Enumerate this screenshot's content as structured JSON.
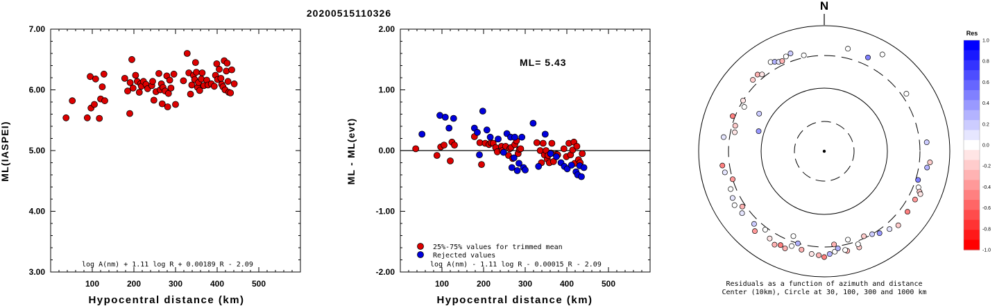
{
  "title": "20200515110326",
  "chart_data": [
    {
      "type": "scatter",
      "xlabel": "Hypocentral distance (km)",
      "ylabel": "ML(IASPEI)",
      "xlim": [
        0,
        600
      ],
      "ylim": [
        3.0,
        7.0
      ],
      "xticks": [
        "100",
        "200",
        "300",
        "400",
        "500"
      ],
      "yticks": [
        "3.00",
        "4.00",
        "5.00",
        "6.00",
        "7.00"
      ],
      "formula": "log A(nm) + 1.11 log R + 0.00189 R - 2.09",
      "series": [
        {
          "color": "#dd0000",
          "points": [
            [
              37,
              5.54
            ],
            [
              52,
              5.82
            ],
            [
              88,
              5.54
            ],
            [
              95,
              6.22
            ],
            [
              97,
              5.7
            ],
            [
              105,
              5.76
            ],
            [
              108,
              6.18
            ],
            [
              117,
              5.53
            ],
            [
              120,
              5.85
            ],
            [
              124,
              6.05
            ],
            [
              128,
              6.26
            ],
            [
              130,
              5.82
            ],
            [
              178,
              6.19
            ],
            [
              185,
              5.98
            ],
            [
              190,
              5.61
            ],
            [
              191,
              6.12
            ],
            [
              195,
              6.5
            ],
            [
              198,
              6.03
            ],
            [
              204,
              6.24
            ],
            [
              208,
              6.14
            ],
            [
              213,
              5.96
            ],
            [
              216,
              6.1
            ],
            [
              218,
              6.06
            ],
            [
              223,
              6.14
            ],
            [
              229,
              6.09
            ],
            [
              233,
              6.02
            ],
            [
              243,
              6.07
            ],
            [
              245,
              6.14
            ],
            [
              248,
              5.83
            ],
            [
              253,
              5.97
            ],
            [
              260,
              6.27
            ],
            [
              263,
              6.0
            ],
            [
              266,
              6.1
            ],
            [
              268,
              5.77
            ],
            [
              270,
              6.04
            ],
            [
              275,
              5.98
            ],
            [
              279,
              6.23
            ],
            [
              281,
              5.72
            ],
            [
              283,
              5.94
            ],
            [
              286,
              6.16
            ],
            [
              289,
              6.03
            ],
            [
              296,
              6.26
            ],
            [
              300,
              5.76
            ],
            [
              319,
              6.15
            ],
            [
              328,
              6.6
            ],
            [
              332,
              6.28
            ],
            [
              336,
              5.93
            ],
            [
              339,
              6.08
            ],
            [
              343,
              6.24
            ],
            [
              346,
              6.17
            ],
            [
              348,
              6.45
            ],
            [
              350,
              6.29
            ],
            [
              353,
              6.04
            ],
            [
              355,
              6.12
            ],
            [
              358,
              5.99
            ],
            [
              362,
              6.18
            ],
            [
              364,
              6.28
            ],
            [
              368,
              6.07
            ],
            [
              375,
              6.16
            ],
            [
              378,
              6.08
            ],
            [
              386,
              6.1
            ],
            [
              393,
              6.06
            ],
            [
              396,
              6.24
            ],
            [
              399,
              6.43
            ],
            [
              401,
              6.17
            ],
            [
              405,
              6.34
            ],
            [
              409,
              6.19
            ],
            [
              411,
              6.09
            ],
            [
              414,
              6.05
            ],
            [
              417,
              6.48
            ],
            [
              419,
              6.0
            ],
            [
              422,
              6.31
            ],
            [
              424,
              6.44
            ],
            [
              426,
              6.14
            ],
            [
              428,
              5.96
            ],
            [
              432,
              5.95
            ],
            [
              435,
              6.33
            ],
            [
              441,
              6.1
            ]
          ]
        }
      ]
    },
    {
      "type": "scatter",
      "xlabel": "Hypocentral distance (km)",
      "ylabel": "ML - ML(evt)",
      "xlim": [
        0,
        600
      ],
      "ylim": [
        -2.0,
        2.0
      ],
      "xticks": [
        "100",
        "200",
        "300",
        "400",
        "500"
      ],
      "yticks": [
        "-2.00",
        "-1.00",
        "0.00",
        "1.00",
        "2.00"
      ],
      "annotation": "ML= 5.43",
      "formula": "log A(nm) - 1.11 log R - 0.00015 R - 2.09",
      "legend": [
        "25%-75% values for trimmed mean",
        "Rejected values"
      ],
      "series": [
        {
          "name": "25%-75% values for trimmed mean",
          "color": "#dd0000",
          "points": [
            [
              37,
              0.03
            ],
            [
              88,
              -0.08
            ],
            [
              97,
              0.06
            ],
            [
              105,
              0.09
            ],
            [
              120,
              -0.17
            ],
            [
              124,
              0.14
            ],
            [
              130,
              0.09
            ],
            [
              178,
              0.23
            ],
            [
              191,
              0.13
            ],
            [
              195,
              -0.23
            ],
            [
              204,
              0.12
            ],
            [
              213,
              0.1
            ],
            [
              218,
              0.13
            ],
            [
              223,
              0.12
            ],
            [
              229,
              0.05
            ],
            [
              233,
              -0.02
            ],
            [
              243,
              0.07
            ],
            [
              245,
              0.0
            ],
            [
              253,
              0.07
            ],
            [
              260,
              -0.08
            ],
            [
              263,
              0.03
            ],
            [
              266,
              0.05
            ],
            [
              270,
              -0.13
            ],
            [
              275,
              0.1
            ],
            [
              279,
              0.16
            ],
            [
              283,
              -0.05
            ],
            [
              286,
              0.02
            ],
            [
              289,
              0.03
            ],
            [
              328,
              0.13
            ],
            [
              336,
              0.0
            ],
            [
              339,
              -0.2
            ],
            [
              343,
              0.12
            ],
            [
              346,
              -0.07
            ],
            [
              350,
              0.0
            ],
            [
              353,
              -0.14
            ],
            [
              355,
              -0.08
            ],
            [
              358,
              -0.2
            ],
            [
              362,
              -0.04
            ],
            [
              364,
              0.12
            ],
            [
              368,
              -0.18
            ],
            [
              375,
              -0.06
            ],
            [
              378,
              -0.07
            ],
            [
              393,
              0.03
            ],
            [
              399,
              -0.1
            ],
            [
              405,
              0.12
            ],
            [
              409,
              -0.07
            ],
            [
              414,
              0.01
            ],
            [
              417,
              0.14
            ],
            [
              419,
              -0.21
            ],
            [
              424,
              0.07
            ],
            [
              428,
              -0.15
            ],
            [
              432,
              -0.2
            ],
            [
              437,
              -0.05
            ]
          ]
        },
        {
          "name": "Rejected values",
          "color": "#0000dd",
          "points": [
            [
              52,
              0.27
            ],
            [
              95,
              0.58
            ],
            [
              108,
              0.55
            ],
            [
              117,
              0.37
            ],
            [
              128,
              0.53
            ],
            [
              178,
              0.37
            ],
            [
              185,
              0.3
            ],
            [
              190,
              -0.07
            ],
            [
              198,
              0.65
            ],
            [
              208,
              0.34
            ],
            [
              216,
              0.22
            ],
            [
              235,
              0.19
            ],
            [
              248,
              -0.03
            ],
            [
              256,
              0.28
            ],
            [
              265,
              0.22
            ],
            [
              268,
              -0.28
            ],
            [
              273,
              -0.12
            ],
            [
              275,
              0.22
            ],
            [
              281,
              -0.33
            ],
            [
              285,
              -0.21
            ],
            [
              292,
              0.22
            ],
            [
              296,
              -0.28
            ],
            [
              300,
              -0.32
            ],
            [
              319,
              0.45
            ],
            [
              332,
              -0.26
            ],
            [
              348,
              0.27
            ],
            [
              361,
              -0.05
            ],
            [
              375,
              -0.1
            ],
            [
              386,
              -0.2
            ],
            [
              394,
              -0.26
            ],
            [
              401,
              -0.3
            ],
            [
              411,
              -0.24
            ],
            [
              422,
              -0.35
            ],
            [
              426,
              -0.4
            ],
            [
              431,
              -0.25
            ],
            [
              435,
              -0.43
            ],
            [
              441,
              -0.28
            ]
          ]
        }
      ]
    },
    {
      "type": "scatter",
      "subtype": "polar",
      "north_label": "N",
      "caption": [
        "Residuals as a function of azimuth and distance",
        "Center (10km), Circle at 30, 100, 300 and 1000 km"
      ],
      "colorbar_title": "Res",
      "colorbar_ticks": [
        "1.0",
        "0.8",
        "0.6",
        "0.4",
        "0.2",
        "0.0",
        "-0.2",
        "-0.4",
        "-0.6",
        "-0.8",
        "-1.0"
      ],
      "color_scale": {
        "positive": "#0000ff",
        "zero": "#ffffff",
        "negative": "#ff0000"
      },
      "points": [
        {
          "az": 299,
          "dist": 260,
          "res": 0.0
        },
        {
          "az": 302,
          "dist": 300,
          "res": -0.1
        },
        {
          "az": 287,
          "dist": 120,
          "res": 0.4
        },
        {
          "az": 278,
          "dist": 380,
          "res": 0.1
        },
        {
          "az": 282,
          "dist": 260,
          "res": -0.1
        },
        {
          "az": 286,
          "dist": 270,
          "res": -0.2
        },
        {
          "az": 291,
          "dist": 330,
          "res": -0.5
        },
        {
          "az": 300,
          "dist": 150,
          "res": 0.2
        },
        {
          "az": 315,
          "dist": 370,
          "res": -0.2
        },
        {
          "az": 319,
          "dist": 380,
          "res": -0.3
        },
        {
          "az": 321,
          "dist": 340,
          "res": -0.1
        },
        {
          "az": 329,
          "dist": 420,
          "res": 0.0
        },
        {
          "az": 331,
          "dist": 390,
          "res": 0.3
        },
        {
          "az": 333,
          "dist": 360,
          "res": 0.1
        },
        {
          "az": 335,
          "dist": 350,
          "res": -0.3
        },
        {
          "az": 338,
          "dist": 390,
          "res": 0.0
        },
        {
          "az": 341,
          "dist": 410,
          "res": 0.2
        },
        {
          "az": 348,
          "dist": 330,
          "res": 0.0
        },
        {
          "az": 13,
          "dist": 440,
          "res": 0.0
        },
        {
          "az": 25,
          "dist": 410,
          "res": 0.5
        },
        {
          "az": 31,
          "dist": 600,
          "res": 0.0
        },
        {
          "az": 99,
          "dist": 420,
          "res": 0.3
        },
        {
          "az": 107,
          "dist": 330,
          "res": 0.5
        },
        {
          "az": 111,
          "dist": 370,
          "res": 0.0
        },
        {
          "az": 113,
          "dist": 410,
          "res": -0.2
        },
        {
          "az": 114,
          "dist": 440,
          "res": -0.1
        },
        {
          "az": 118,
          "dist": 400,
          "res": -0.4
        },
        {
          "az": 150,
          "dist": 300,
          "res": 0.2
        },
        {
          "az": 160,
          "dist": 390,
          "res": -0.2
        },
        {
          "az": 167,
          "dist": 390,
          "res": -0.3
        },
        {
          "az": 168,
          "dist": 370,
          "res": 0.0
        },
        {
          "az": 174,
          "dist": 370,
          "res": 0.0
        },
        {
          "az": 177,
          "dist": 400,
          "res": 0.3
        },
        {
          "az": 180,
          "dist": 450,
          "res": -0.5
        },
        {
          "az": 183,
          "dist": 420,
          "res": -0.3
        },
        {
          "az": 187,
          "dist": 410,
          "res": -0.1
        },
        {
          "az": 193,
          "dist": 370,
          "res": -0.3
        },
        {
          "az": 196,
          "dist": 300,
          "res": 0.3
        },
        {
          "az": 199,
          "dist": 360,
          "res": 0.0
        },
        {
          "az": 202,
          "dist": 430,
          "res": -0.3
        },
        {
          "az": 205,
          "dist": 410,
          "res": -0.5
        },
        {
          "az": 208,
          "dist": 450,
          "res": -0.3
        },
        {
          "az": 212,
          "dist": 400,
          "res": -0.1
        },
        {
          "az": 217,
          "dist": 330,
          "res": 0.0
        },
        {
          "az": 221,
          "dist": 450,
          "res": -0.4
        },
        {
          "az": 224,
          "dist": 370,
          "res": 0.2
        },
        {
          "az": 233,
          "dist": 400,
          "res": 0.1
        },
        {
          "az": 236,
          "dist": 340,
          "res": -0.3
        },
        {
          "az": 239,
          "dist": 430,
          "res": 0.0
        },
        {
          "az": 243,
          "dist": 400,
          "res": 0.1
        },
        {
          "az": 248,
          "dist": 370,
          "res": 0.0
        },
        {
          "az": 253,
          "dist": 300,
          "res": -0.4
        },
        {
          "az": 258,
          "dist": 380,
          "res": 0.1
        },
        {
          "az": 262,
          "dist": 400,
          "res": -0.5
        },
        {
          "az": 200,
          "dist": 250,
          "res": 0.0
        },
        {
          "az": 174,
          "dist": 280,
          "res": -0.3
        },
        {
          "az": 165,
          "dist": 260,
          "res": 0.0
        },
        {
          "az": 155,
          "dist": 280,
          "res": -0.2
        },
        {
          "az": 146,
          "dist": 340,
          "res": 0.4
        },
        {
          "az": 140,
          "dist": 380,
          "res": 0.1
        },
        {
          "az": 135,
          "dist": 430,
          "res": -0.2
        },
        {
          "az": 126,
          "dist": 400,
          "res": -0.5
        },
        {
          "az": 96,
          "dist": 460,
          "res": -0.2
        },
        {
          "az": 85,
          "dist": 400,
          "res": 0.2
        },
        {
          "az": 55,
          "dist": 360,
          "res": 0.0
        },
        {
          "az": 160,
          "dist": 340,
          "res": 0.0
        },
        {
          "az": 172,
          "dist": 330,
          "res": 0.3
        }
      ]
    }
  ]
}
